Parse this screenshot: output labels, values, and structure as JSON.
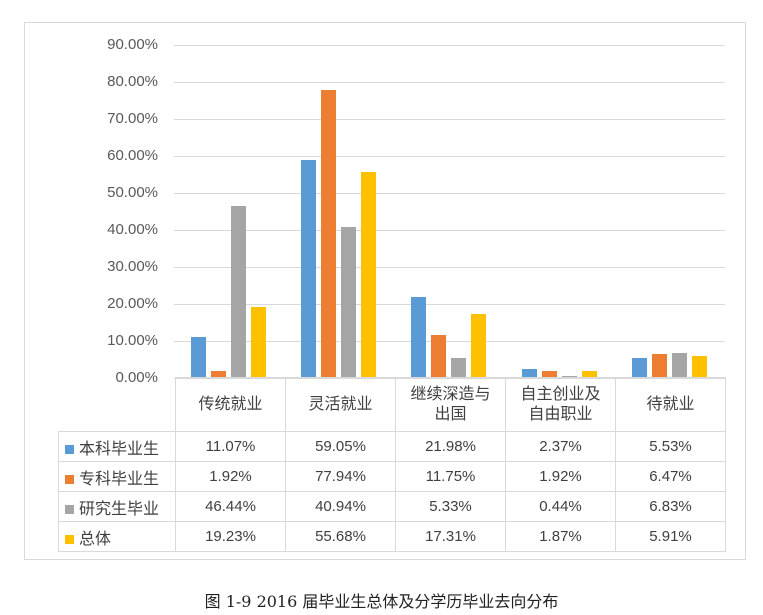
{
  "chart_data": {
    "type": "bar",
    "title": "",
    "caption": "图 1-9 2016 届毕业生总体及分学历毕业去向分布",
    "xlabel": "",
    "ylabel": "",
    "ylim": [
      0,
      90
    ],
    "yticks": [
      "0.00%",
      "10.00%",
      "20.00%",
      "30.00%",
      "40.00%",
      "50.00%",
      "60.00%",
      "70.00%",
      "80.00%",
      "90.00%"
    ],
    "grid": true,
    "legend_position": "data-table-left",
    "categories": [
      "传统就业",
      "灵活就业",
      "继续深造与出国",
      "自主创业及自由职业",
      "待就业"
    ],
    "category_lines": [
      [
        "传统就业"
      ],
      [
        "灵活就业"
      ],
      [
        "继续深造与",
        "出国"
      ],
      [
        "自主创业及",
        "自由职业"
      ],
      [
        "待就业"
      ]
    ],
    "series": [
      {
        "name": "本科毕业生",
        "color": "#5b9bd5",
        "values": [
          11.07,
          59.05,
          21.98,
          2.37,
          5.53
        ],
        "labels": [
          "11.07%",
          "59.05%",
          "21.98%",
          "2.37%",
          "5.53%"
        ]
      },
      {
        "name": "专科毕业生",
        "color": "#ed7d31",
        "values": [
          1.92,
          77.94,
          11.75,
          1.92,
          6.47
        ],
        "labels": [
          "1.92%",
          "77.94%",
          "11.75%",
          "1.92%",
          "6.47%"
        ]
      },
      {
        "name": "研究生毕业",
        "color": "#a5a5a5",
        "values": [
          46.44,
          40.94,
          5.33,
          0.44,
          6.83
        ],
        "labels": [
          "46.44%",
          "40.94%",
          "5.33%",
          "0.44%",
          "6.83%"
        ]
      },
      {
        "name": "总体",
        "color": "#ffc000",
        "values": [
          19.23,
          55.68,
          17.31,
          1.87,
          5.91
        ],
        "labels": [
          "19.23%",
          "55.68%",
          "17.31%",
          "1.87%",
          "5.91%"
        ]
      }
    ]
  }
}
